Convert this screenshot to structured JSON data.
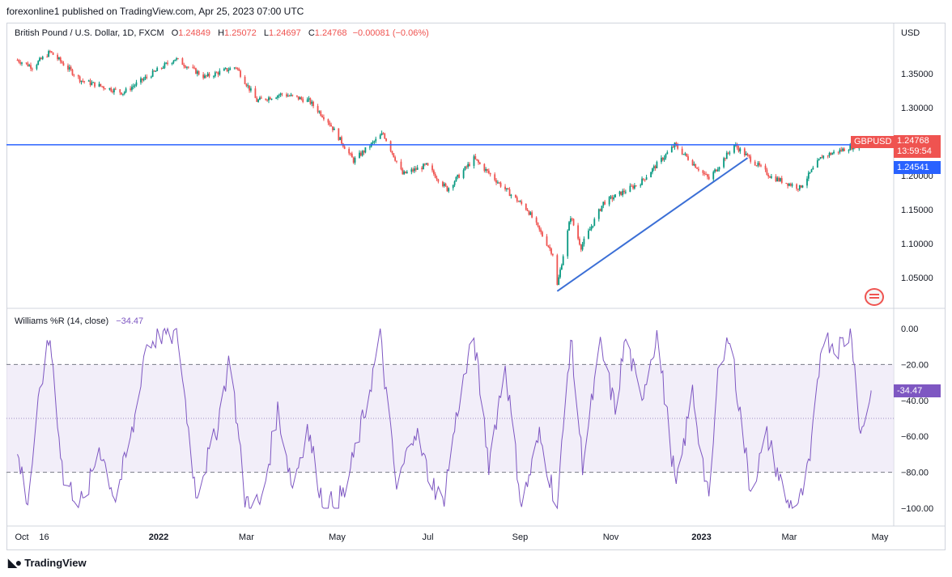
{
  "header": {
    "published": "forexonline1 published on TradingView.com, Apr 25, 2023 07:00 UTC"
  },
  "legend": {
    "symbol": "British Pound / U.S. Dollar, 1D, FXCM",
    "o_label": "O",
    "o": "1.24849",
    "h_label": "H",
    "h": "1.25072",
    "l_label": "L",
    "l": "1.24697",
    "c_label": "C",
    "c": "1.24768",
    "change": "−0.00081 (−0.06%)"
  },
  "currency": "USD",
  "price_tags": {
    "symbol": "GBPUSD",
    "last": "1.24768",
    "countdown": "13:59:54",
    "horizontal_line": "1.24541",
    "williams": "-34.47"
  },
  "indicator": {
    "label": "Williams %R (14, close)",
    "value": "−34.47"
  },
  "footer": {
    "brand": "TradingView"
  },
  "colors": {
    "up": "#089981",
    "down": "#ef5350",
    "line": "#2962ff",
    "trend": "#3b6fd6",
    "wr": "#7e57c2",
    "band": "#ede7f6"
  },
  "icons": {
    "flag": "us-flag-icon",
    "logo": "tradingview-logo-icon"
  },
  "chart_data": [
    {
      "type": "candlestick",
      "title": "British Pound / U.S. Dollar, 1D, FXCM",
      "x_tick_labels": [
        "Oct",
        "16",
        "2022",
        "Mar",
        "May",
        "Jul",
        "Sep",
        "Nov",
        "2023",
        "Mar",
        "May"
      ],
      "y_tick_labels": [
        "1.35000",
        "1.30000",
        "1.25000",
        "1.20000",
        "1.15000",
        "1.10000",
        "1.05000"
      ],
      "ylim": [
        1.02,
        1.385
      ],
      "anchors": [
        [
          "2021-09-28",
          1.37
        ],
        [
          "2021-10-08",
          1.36
        ],
        [
          "2021-10-20",
          1.382
        ],
        [
          "2021-11-10",
          1.34
        ],
        [
          "2021-12-08",
          1.322
        ],
        [
          "2022-01-12",
          1.372
        ],
        [
          "2022-02-01",
          1.345
        ],
        [
          "2022-02-22",
          1.36
        ],
        [
          "2022-03-08",
          1.31
        ],
        [
          "2022-03-25",
          1.32
        ],
        [
          "2022-04-12",
          1.31
        ],
        [
          "2022-04-25",
          1.28
        ],
        [
          "2022-05-12",
          1.222
        ],
        [
          "2022-06-01",
          1.262
        ],
        [
          "2022-06-14",
          1.202
        ],
        [
          "2022-06-30",
          1.215
        ],
        [
          "2022-07-14",
          1.18
        ],
        [
          "2022-08-01",
          1.225
        ],
        [
          "2022-08-22",
          1.18
        ],
        [
          "2022-09-06",
          1.15
        ],
        [
          "2022-09-23",
          1.085
        ],
        [
          "2022-09-26",
          1.038
        ],
        [
          "2022-10-05",
          1.14
        ],
        [
          "2022-10-12",
          1.095
        ],
        [
          "2022-10-27",
          1.16
        ],
        [
          "2022-11-21",
          1.19
        ],
        [
          "2022-12-14",
          1.245
        ],
        [
          "2023-01-06",
          1.195
        ],
        [
          "2023-01-23",
          1.245
        ],
        [
          "2023-02-17",
          1.198
        ],
        [
          "2023-03-08",
          1.182
        ],
        [
          "2023-03-23",
          1.228
        ],
        [
          "2023-04-14",
          1.244
        ],
        [
          "2023-04-25",
          1.2477
        ]
      ],
      "horizontal_line": 1.24541,
      "trend_line": [
        [
          "2022-09-26",
          1.03
        ],
        [
          "2023-02-01",
          1.226
        ]
      ],
      "last": {
        "open": 1.24849,
        "high": 1.25072,
        "low": 1.24697,
        "close": 1.24768
      }
    },
    {
      "type": "line",
      "title": "Williams %R (14, close)",
      "y_tick_labels": [
        "0.00",
        "−20.00",
        "−40.00",
        "−60.00",
        "−80.00",
        "−100.00"
      ],
      "ylim": [
        -100,
        0
      ],
      "bands": [
        -20,
        -50,
        -80
      ],
      "anchors": [
        [
          "2021-09-28",
          -70
        ],
        [
          "2021-10-05",
          -96
        ],
        [
          "2021-10-14",
          -30
        ],
        [
          "2021-10-20",
          -5
        ],
        [
          "2021-10-29",
          -85
        ],
        [
          "2021-11-12",
          -98
        ],
        [
          "2021-11-22",
          -65
        ],
        [
          "2021-12-03",
          -95
        ],
        [
          "2021-12-15",
          -55
        ],
        [
          "2021-12-23",
          -10
        ],
        [
          "2022-01-05",
          -2
        ],
        [
          "2022-01-14",
          -5
        ],
        [
          "2022-01-26",
          -92
        ],
        [
          "2022-02-08",
          -60
        ],
        [
          "2022-02-18",
          -15
        ],
        [
          "2022-02-28",
          -95
        ],
        [
          "2022-03-11",
          -98
        ],
        [
          "2022-03-22",
          -45
        ],
        [
          "2022-04-01",
          -88
        ],
        [
          "2022-04-11",
          -55
        ],
        [
          "2022-04-22",
          -100
        ],
        [
          "2022-05-06",
          -92
        ],
        [
          "2022-05-20",
          -45
        ],
        [
          "2022-05-30",
          -5
        ],
        [
          "2022-06-10",
          -90
        ],
        [
          "2022-06-22",
          -55
        ],
        [
          "2022-07-01",
          -80
        ],
        [
          "2022-07-11",
          -98
        ],
        [
          "2022-07-22",
          -40
        ],
        [
          "2022-08-01",
          -5
        ],
        [
          "2022-08-11",
          -75
        ],
        [
          "2022-08-22",
          -20
        ],
        [
          "2022-09-02",
          -99
        ],
        [
          "2022-09-14",
          -60
        ],
        [
          "2022-09-26",
          -99
        ],
        [
          "2022-10-05",
          -5
        ],
        [
          "2022-10-13",
          -75
        ],
        [
          "2022-10-25",
          -10
        ],
        [
          "2022-11-04",
          -45
        ],
        [
          "2022-11-11",
          -5
        ],
        [
          "2022-11-21",
          -40
        ],
        [
          "2022-12-02",
          -3
        ],
        [
          "2022-12-15",
          -90
        ],
        [
          "2022-12-26",
          -35
        ],
        [
          "2023-01-06",
          -98
        ],
        [
          "2023-01-13",
          -15
        ],
        [
          "2023-01-20",
          -5
        ],
        [
          "2023-02-03",
          -90
        ],
        [
          "2023-02-14",
          -60
        ],
        [
          "2023-02-28",
          -98
        ],
        [
          "2023-03-08",
          -97
        ],
        [
          "2023-03-15",
          -75
        ],
        [
          "2023-03-23",
          -5
        ],
        [
          "2023-04-03",
          -10
        ],
        [
          "2023-04-12",
          -2
        ],
        [
          "2023-04-18",
          -60
        ],
        [
          "2023-04-25",
          -34.47
        ]
      ]
    }
  ]
}
